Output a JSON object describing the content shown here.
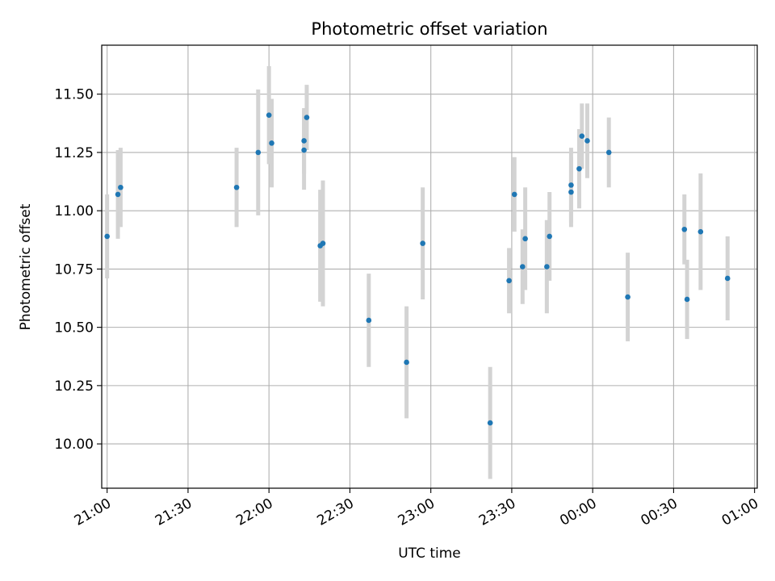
{
  "chart_data": {
    "type": "scatter",
    "title": "Photometric offset variation",
    "xlabel": "UTC time",
    "ylabel": "Photometric offset",
    "x_unit": "UTC time (HH:MM), 21:00 to 01:00 of next day",
    "xlim": [
      "20:58",
      "01:01"
    ],
    "ylim": [
      9.81,
      11.71
    ],
    "x_ticks": [
      "21:00",
      "21:30",
      "22:00",
      "22:30",
      "23:00",
      "23:30",
      "00:00",
      "00:30",
      "01:00"
    ],
    "y_ticks": [
      10.0,
      10.25,
      10.5,
      10.75,
      11.0,
      11.25,
      11.5
    ],
    "y_tick_labels": [
      "10.00",
      "10.25",
      "10.50",
      "10.75",
      "11.00",
      "11.25",
      "11.50"
    ],
    "grid": true,
    "colors": {
      "points": "#1f77b4",
      "errorbars": "#d3d3d3",
      "grid": "#b0b0b0"
    },
    "points": [
      {
        "x": "21:00",
        "y": 10.89,
        "yerr": 0.18
      },
      {
        "x": "21:04",
        "y": 11.07,
        "yerr": 0.19
      },
      {
        "x": "21:05",
        "y": 11.1,
        "yerr": 0.17
      },
      {
        "x": "21:48",
        "y": 11.1,
        "yerr": 0.17
      },
      {
        "x": "21:56",
        "y": 11.25,
        "yerr": 0.27
      },
      {
        "x": "22:00",
        "y": 11.41,
        "yerr": 0.21
      },
      {
        "x": "22:01",
        "y": 11.29,
        "yerr": 0.19
      },
      {
        "x": "22:13",
        "y": 11.26,
        "yerr": 0.17
      },
      {
        "x": "22:13",
        "y": 11.3,
        "yerr": 0.14
      },
      {
        "x": "22:14",
        "y": 11.4,
        "yerr": 0.14
      },
      {
        "x": "22:19",
        "y": 10.85,
        "yerr": 0.24
      },
      {
        "x": "22:20",
        "y": 10.86,
        "yerr": 0.27
      },
      {
        "x": "22:37",
        "y": 10.53,
        "yerr": 0.2
      },
      {
        "x": "22:51",
        "y": 10.35,
        "yerr": 0.24
      },
      {
        "x": "22:57",
        "y": 10.86,
        "yerr": 0.24
      },
      {
        "x": "23:22",
        "y": 10.09,
        "yerr": 0.24
      },
      {
        "x": "23:29",
        "y": 10.7,
        "yerr": 0.14
      },
      {
        "x": "23:31",
        "y": 11.07,
        "yerr": 0.16
      },
      {
        "x": "23:34",
        "y": 10.76,
        "yerr": 0.16
      },
      {
        "x": "23:35",
        "y": 10.88,
        "yerr": 0.22
      },
      {
        "x": "23:43",
        "y": 10.76,
        "yerr": 0.2
      },
      {
        "x": "23:44",
        "y": 10.89,
        "yerr": 0.19
      },
      {
        "x": "23:52",
        "y": 11.11,
        "yerr": 0.16
      },
      {
        "x": "23:52",
        "y": 11.08,
        "yerr": 0.15
      },
      {
        "x": "23:55",
        "y": 11.18,
        "yerr": 0.17
      },
      {
        "x": "23:56",
        "y": 11.32,
        "yerr": 0.14
      },
      {
        "x": "23:58",
        "y": 11.3,
        "yerr": 0.16
      },
      {
        "x": "00:06",
        "y": 11.25,
        "yerr": 0.15
      },
      {
        "x": "00:13",
        "y": 10.63,
        "yerr": 0.19
      },
      {
        "x": "00:34",
        "y": 10.92,
        "yerr": 0.15
      },
      {
        "x": "00:35",
        "y": 10.62,
        "yerr": 0.17
      },
      {
        "x": "00:40",
        "y": 10.91,
        "yerr": 0.25
      },
      {
        "x": "00:50",
        "y": 10.71,
        "yerr": 0.18
      }
    ]
  }
}
